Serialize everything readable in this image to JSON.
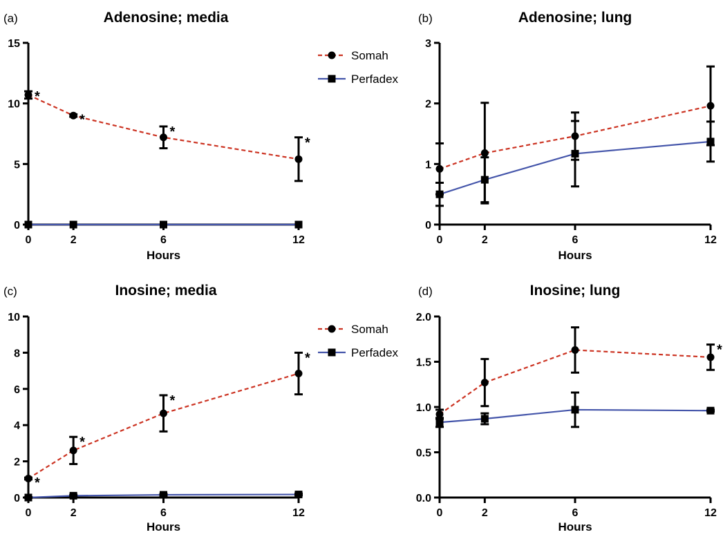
{
  "colors": {
    "Somah": "#cc3322",
    "Perfadex": "#4455aa",
    "axis": "#000000"
  },
  "chart_data": [
    {
      "id": "a",
      "panel_label": "(a)",
      "type": "line",
      "title": "Adenosine; media",
      "xlabel": "Hours",
      "ylabel": "",
      "x": [
        0,
        2,
        6,
        12
      ],
      "xticks": [
        "0",
        "2",
        "6",
        "12"
      ],
      "ylim": [
        0,
        15
      ],
      "yticks": [
        0,
        5,
        10,
        15
      ],
      "yticklabels": [
        "0",
        "5",
        "10",
        "15"
      ],
      "legend": true,
      "series": [
        {
          "name": "Somah",
          "marker": "circle",
          "style": "dashed",
          "values": [
            10.7,
            9.0,
            7.2,
            5.4
          ],
          "err": [
            0.3,
            0.1,
            0.9,
            1.8
          ],
          "stars": [
            true,
            true,
            true,
            true
          ]
        },
        {
          "name": "Perfadex",
          "marker": "square",
          "style": "solid",
          "values": [
            0,
            0,
            0,
            0
          ],
          "err": [
            0,
            0,
            0,
            0
          ],
          "stars": [
            false,
            false,
            false,
            false
          ]
        }
      ]
    },
    {
      "id": "b",
      "panel_label": "(b)",
      "type": "line",
      "title": "Adenosine; lung",
      "xlabel": "Hours",
      "ylabel": "",
      "x": [
        0,
        2,
        6,
        12
      ],
      "xticks": [
        "0",
        "2",
        "6",
        "12"
      ],
      "ylim": [
        0,
        3
      ],
      "yticks": [
        0,
        1,
        2,
        3
      ],
      "yticklabels": [
        "0",
        "1",
        "2",
        "3"
      ],
      "legend": false,
      "series": [
        {
          "name": "Somah",
          "marker": "circle",
          "style": "dashed",
          "values": [
            0.92,
            1.18,
            1.46,
            1.96
          ],
          "err": [
            0.42,
            0.83,
            0.39,
            0.65
          ],
          "stars": [
            false,
            false,
            false,
            false
          ]
        },
        {
          "name": "Perfadex",
          "marker": "square",
          "style": "solid",
          "values": [
            0.5,
            0.74,
            1.17,
            1.37
          ],
          "err": [
            0.19,
            0.37,
            0.54,
            0.33
          ],
          "stars": [
            false,
            false,
            false,
            false
          ]
        }
      ]
    },
    {
      "id": "c",
      "panel_label": "(c)",
      "type": "line",
      "title": "Inosine; media",
      "xlabel": "Hours",
      "ylabel": "",
      "x": [
        0,
        2,
        6,
        12
      ],
      "xticks": [
        "0",
        "2",
        "6",
        "12"
      ],
      "ylim": [
        0,
        10
      ],
      "yticks": [
        0,
        2,
        4,
        6,
        8,
        10
      ],
      "yticklabels": [
        "0",
        "2",
        "4",
        "6",
        "8",
        "10"
      ],
      "legend": true,
      "series": [
        {
          "name": "Somah",
          "marker": "circle",
          "style": "dashed",
          "values": [
            1.05,
            2.6,
            4.65,
            6.85
          ],
          "err": [
            0.05,
            0.75,
            1.0,
            1.15
          ],
          "stars": [
            true,
            true,
            true,
            true
          ]
        },
        {
          "name": "Perfadex",
          "marker": "square",
          "style": "solid",
          "values": [
            0.0,
            0.1,
            0.15,
            0.17
          ],
          "err": [
            0.02,
            0.05,
            0.05,
            0.05
          ],
          "stars": [
            false,
            false,
            false,
            false
          ]
        }
      ]
    },
    {
      "id": "d",
      "panel_label": "(d)",
      "type": "line",
      "title": "Inosine; lung",
      "xlabel": "Hours",
      "ylabel": "",
      "x": [
        0,
        2,
        6,
        12
      ],
      "xticks": [
        "0",
        "2",
        "6",
        "12"
      ],
      "ylim": [
        0,
        2
      ],
      "yticks": [
        0,
        0.5,
        1,
        1.5,
        2
      ],
      "yticklabels": [
        "0.0",
        "0.5",
        "1.0",
        "1.5",
        "2.0"
      ],
      "legend": false,
      "series": [
        {
          "name": "Somah",
          "marker": "circle",
          "style": "dashed",
          "values": [
            0.92,
            1.27,
            1.63,
            1.55
          ],
          "err": [
            0.05,
            0.26,
            0.25,
            0.14
          ],
          "stars": [
            false,
            false,
            false,
            true
          ]
        },
        {
          "name": "Perfadex",
          "marker": "square",
          "style": "solid",
          "values": [
            0.83,
            0.87,
            0.97,
            0.96
          ],
          "err": [
            0.05,
            0.06,
            0.19,
            0.01
          ],
          "stars": [
            false,
            false,
            false,
            false
          ]
        }
      ]
    }
  ],
  "legend": {
    "somah_label": "Somah",
    "perfadex_label": "Perfadex",
    "star_symbol": "*"
  }
}
